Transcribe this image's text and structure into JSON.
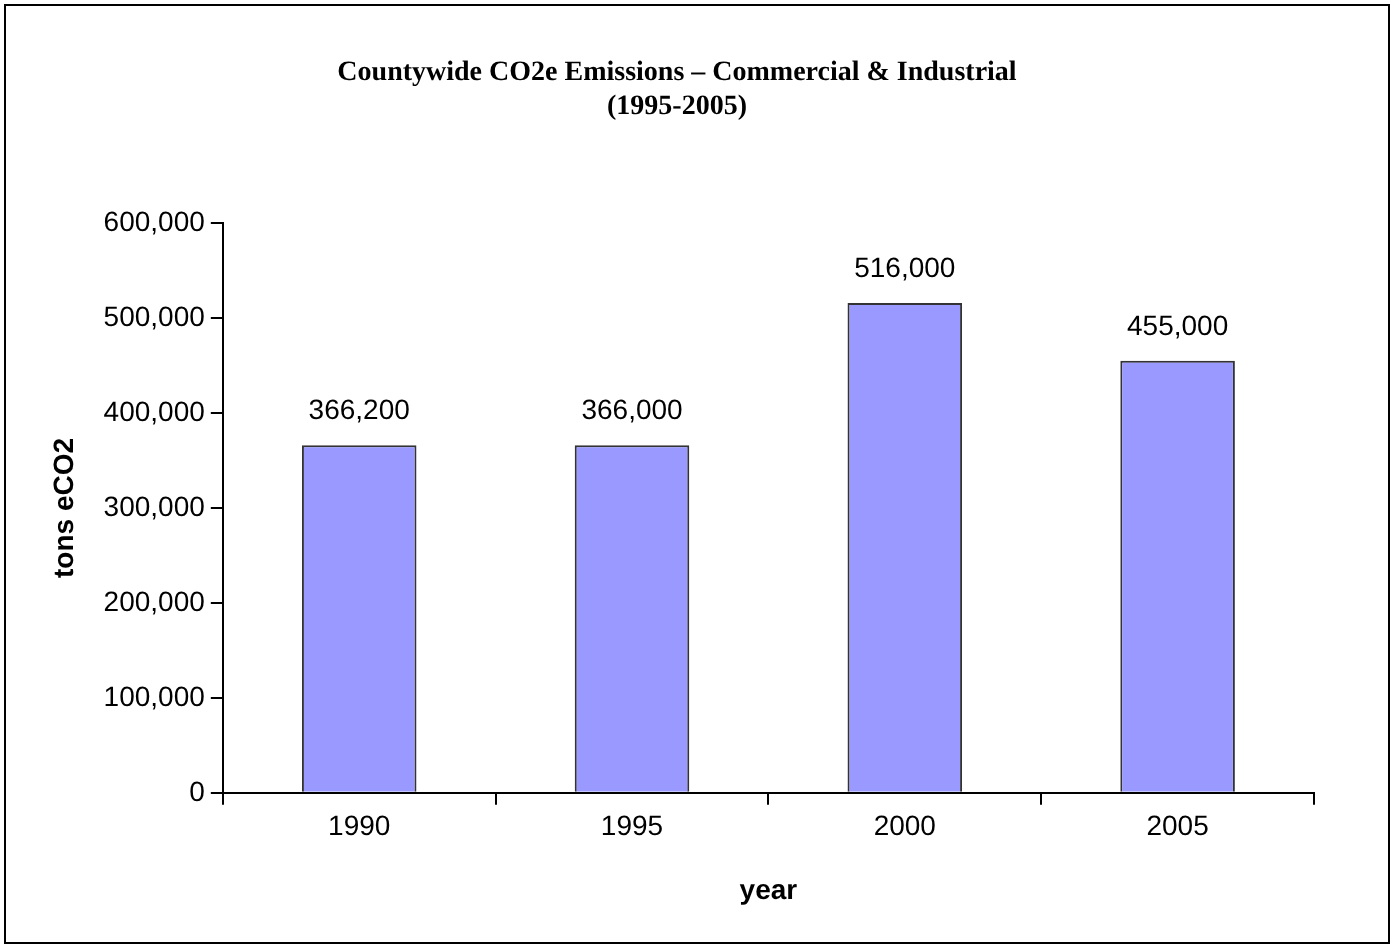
{
  "chart_data": {
    "type": "bar",
    "title": "Countywide CO2e Emissions – Commercial & Industrial",
    "subtitle": "(1995-2005)",
    "xlabel": "year",
    "ylabel": "tons eCO2",
    "categories": [
      "1990",
      "1995",
      "2000",
      "2005"
    ],
    "values": [
      366200,
      366000,
      516000,
      455000
    ],
    "color": "#9999ff",
    "value_labels": [
      "366,200",
      "366,000",
      "516,000",
      "455,000"
    ],
    "ylim": [
      0,
      600000
    ],
    "yticks": [
      0,
      {
        "value": 100000,
        "label": "100,000"
      },
      {
        "value": 200000,
        "label": "200,000"
      },
      {
        "value": 300000,
        "label": "300,000"
      },
      {
        "value": 400000,
        "label": "400,000"
      },
      {
        "value": 500000,
        "label": "500,000"
      },
      {
        "value": 600000,
        "label": "600,000"
      }
    ],
    "grid": false,
    "legend": false
  }
}
